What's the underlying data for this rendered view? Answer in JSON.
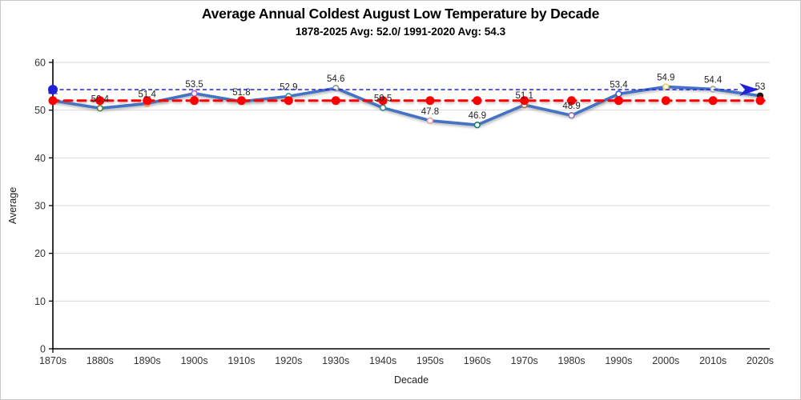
{
  "header": {
    "title": "Average Annual Coldest August Low Temperature by Decade",
    "subtitle": "1878-2025 Avg: 52.0/ 1991-2020 Avg: 54.3"
  },
  "chart_data": {
    "type": "line",
    "title": "Average Annual Coldest August Low Temperature by Decade",
    "subtitle": "1878-2025 Avg: 52.0/ 1991-2020 Avg: 54.3",
    "xlabel": "Decade",
    "ylabel": "Average",
    "ylim": [
      0,
      60
    ],
    "yticks": [
      0,
      10,
      20,
      30,
      40,
      50,
      60
    ],
    "grid": "horizontal-light-gray",
    "legend_position": "none",
    "categories": [
      "1870s",
      "1880s",
      "1890s",
      "1900s",
      "1910s",
      "1920s",
      "1930s",
      "1940s",
      "1950s",
      "1960s",
      "1970s",
      "1980s",
      "1990s",
      "2000s",
      "2010s",
      "2020s"
    ],
    "series": [
      {
        "name": "coldest-august-low-by-decade",
        "type": "line",
        "color": "#4472C4",
        "values": [
          52,
          50.4,
          51.4,
          53.5,
          51.8,
          52.9,
          54.6,
          50.5,
          47.8,
          46.9,
          51.1,
          48.9,
          53.4,
          54.9,
          54.4,
          53
        ],
        "data_labels": [
          "52",
          "50.4",
          "51.4",
          "53.5",
          "51.8",
          "52.9",
          "54.6",
          "50.5",
          "47.8",
          "46.9",
          "51.1",
          "48.9",
          "53.4",
          "54.9",
          "54.4",
          "53"
        ],
        "point_colors": [
          "#8FAADC",
          "#548235",
          "#ED7D31",
          "#B55FC4",
          "#ED7D31",
          "#17A0A0",
          "#8C9499",
          "#2E8B8B",
          "#E6A0AA",
          "#1E7A6E",
          "#B06A3B",
          "#8E6FC0",
          "#2E5FD0",
          "#E3D05A",
          "#9BA4AD",
          "#1A1A1A"
        ],
        "last_point_filled": true
      },
      {
        "name": "avg-1878-2025",
        "type": "reference-line",
        "value": 52.0,
        "color": "#FE0000",
        "line_style": "dashed",
        "markers": "filled-dot-at-each-category"
      },
      {
        "name": "avg-1991-2020",
        "type": "reference-line",
        "value": 54.3,
        "color": "#2121DC",
        "line_style": "dashed",
        "start_marker": "filled-circle",
        "end_marker": "arrow-right"
      }
    ]
  }
}
